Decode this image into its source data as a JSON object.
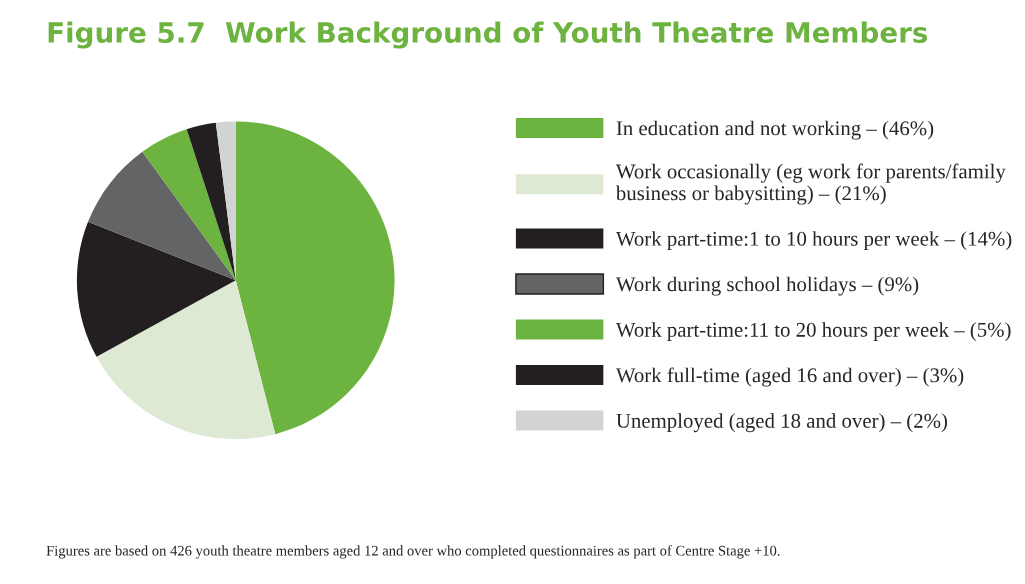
{
  "chart_data": {
    "type": "pie",
    "title": "Figure 5.7  Work Background of Youth Theatre Members",
    "categories": [
      "In education and not working – (46%)",
      "Work occasionally (eg work for parents/family\nbusiness or babysitting) – (21%)",
      "Work part-time:1 to 10 hours per week – (14%)",
      "Work during school holidays – (9%)",
      "Work part-time:11 to 20 hours per week – (5%)",
      "Work full-time (aged 16 and over) – (3%)",
      "Unemployed (aged 18 and over) – (2%)"
    ],
    "values": [
      46,
      21,
      14,
      9,
      5,
      3,
      2
    ],
    "colors": [
      "#6db33f",
      "#dde9d3",
      "#231f20",
      "#636466",
      "#6db33f",
      "#231f20",
      "#d1d3d4"
    ],
    "legend": "right",
    "annotations": [
      "Figures are based on 426 youth theatre members aged 12 and over who completed questionnaires as part of Centre Stage +10."
    ]
  }
}
